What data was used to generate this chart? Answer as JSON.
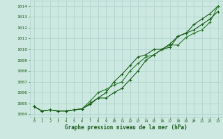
{
  "x": [
    0,
    1,
    2,
    3,
    4,
    5,
    6,
    7,
    8,
    9,
    10,
    11,
    12,
    13,
    14,
    15,
    16,
    17,
    18,
    19,
    20,
    21,
    22,
    23
  ],
  "line1": [
    1004.7,
    1004.3,
    1004.4,
    1004.3,
    1004.3,
    1004.4,
    1004.5,
    1005.0,
    1005.5,
    1006.0,
    1007.0,
    1007.7,
    1008.5,
    1009.3,
    1009.5,
    1010.0,
    1010.0,
    1010.5,
    1011.2,
    1011.5,
    1012.3,
    1012.8,
    1013.3,
    1014.0
  ],
  "line2": [
    1004.7,
    1004.3,
    1004.4,
    1004.3,
    1004.3,
    1004.4,
    1004.5,
    1005.2,
    1006.0,
    1006.3,
    1006.7,
    1007.0,
    1008.0,
    1008.7,
    1009.3,
    1009.5,
    1010.0,
    1010.4,
    1010.4,
    1011.1,
    1011.5,
    1011.8,
    1012.5,
    1014.0
  ],
  "line3": [
    1004.7,
    1004.3,
    1004.4,
    1004.3,
    1004.3,
    1004.4,
    1004.5,
    1004.9,
    1005.5,
    1005.5,
    1006.0,
    1006.4,
    1007.2,
    1008.0,
    1009.0,
    1009.5,
    1010.0,
    1010.2,
    1011.2,
    1011.5,
    1011.8,
    1012.3,
    1012.8,
    1013.5
  ],
  "line_color1": "#1a5c1a",
  "line_color2": "#2d7a2d",
  "line_color3": "#1a5c1a",
  "bg_color": "#cce8e0",
  "grid_color": "#aad0c8",
  "text_color": "#1a5c1a",
  "ylabel_values": [
    1004,
    1005,
    1006,
    1007,
    1008,
    1009,
    1010,
    1011,
    1012,
    1013,
    1014
  ],
  "ylim": [
    1003.7,
    1014.5
  ],
  "xlim": [
    -0.5,
    23.5
  ],
  "xlabel": "Graphe pression niveau de la mer (hPa)",
  "marker": "+",
  "markersize": 3,
  "linewidth": 0.8
}
